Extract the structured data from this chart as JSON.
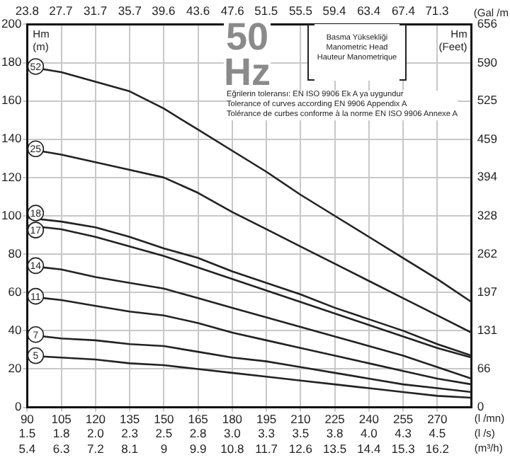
{
  "chart_data": {
    "type": "line",
    "title": "50\nHz",
    "annotations": [
      "Basma Yüksekliği",
      "Manometric Head",
      "Hauteur Manometrique",
      "Eğrilerin toleransı: EN ISO 9906 Ek A ya uygundur",
      "Tolerance of curves according EN 9906 Appendix A",
      "Tolérance de curbes conforme à la norme EN ISO 9906 Annexe A",
      "(l /s)",
      "(m³/h)",
      "1.5",
      "1.8",
      "2.0",
      "2.3",
      "2.5",
      "2.8",
      "3.0",
      "3.3",
      "3.5",
      "3.8",
      "4.0",
      "4.3",
      "4.5",
      "5.4",
      "6.3",
      "7.2",
      "8.1",
      "9",
      "9.9",
      "10.8",
      "11.7",
      "12.6",
      "13.5",
      "14.4",
      "15.3",
      "16.2"
    ],
    "x": [
      90,
      105,
      120,
      135,
      150,
      165,
      180,
      195,
      210,
      225,
      240,
      255,
      270,
      285
    ],
    "series": [
      {
        "name": "52",
        "color": "#222222",
        "values": [
          178,
          175,
          170,
          165,
          156,
          145,
          134,
          123,
          111,
          100,
          89,
          78,
          67,
          55
        ]
      },
      {
        "name": "25",
        "color": "#222222",
        "values": [
          135,
          132,
          128,
          124,
          120,
          112,
          102,
          93,
          84,
          75,
          66,
          57,
          48,
          39
        ]
      },
      {
        "name": "18",
        "color": "#222222",
        "values": [
          99,
          97,
          94,
          89,
          83,
          78,
          71,
          65,
          59,
          52,
          46,
          40,
          33,
          27
        ]
      },
      {
        "name": "17",
        "color": "#222222",
        "values": [
          95,
          93,
          89,
          84,
          79,
          73,
          67,
          61,
          55,
          49,
          43,
          37,
          31,
          26
        ]
      },
      {
        "name": "14",
        "color": "#222222",
        "values": [
          74,
          72,
          68,
          65,
          62,
          57,
          52,
          47,
          42,
          37,
          32,
          27,
          21,
          15
        ]
      },
      {
        "name": "11",
        "color": "#222222",
        "values": [
          58,
          56,
          53,
          50,
          48,
          44,
          39,
          35,
          31,
          27,
          23,
          19,
          15,
          12
        ]
      },
      {
        "name": "7",
        "color": "#222222",
        "values": [
          38,
          36,
          35,
          33,
          32,
          29,
          26,
          24,
          21,
          18,
          15,
          12,
          10,
          8
        ]
      },
      {
        "name": "5",
        "color": "#222222",
        "values": [
          27,
          26,
          25,
          23,
          22,
          20,
          18,
          16,
          14,
          12,
          10,
          8,
          6,
          5
        ]
      }
    ],
    "xlabel": "(l /mn)",
    "xlim": [
      90,
      285
    ],
    "xticks": [
      90,
      105,
      120,
      135,
      150,
      165,
      180,
      195,
      210,
      225,
      240,
      255,
      270
    ],
    "x2label": "(Gal /m",
    "x2lim": [
      23.8,
      75.3
    ],
    "x2ticks": [
      23.8,
      27.7,
      31.7,
      35.7,
      39.6,
      43.6,
      47.6,
      51.5,
      55.5,
      59.4,
      63.4,
      67.4,
      71.3
    ],
    "ylabel": "Hm\n(m)",
    "ylim": [
      0,
      200
    ],
    "yticks": [
      0,
      20,
      40,
      60,
      80,
      100,
      120,
      140,
      160,
      180,
      200
    ],
    "y2label": "Hm\n(Feet)",
    "y2lim": [
      0,
      656
    ],
    "y2ticks": [
      0,
      66,
      131,
      197,
      262,
      328,
      394,
      459,
      525,
      590,
      656
    ],
    "grid": true,
    "legend": "left",
    "marker": "none",
    "line_style": "solid"
  }
}
